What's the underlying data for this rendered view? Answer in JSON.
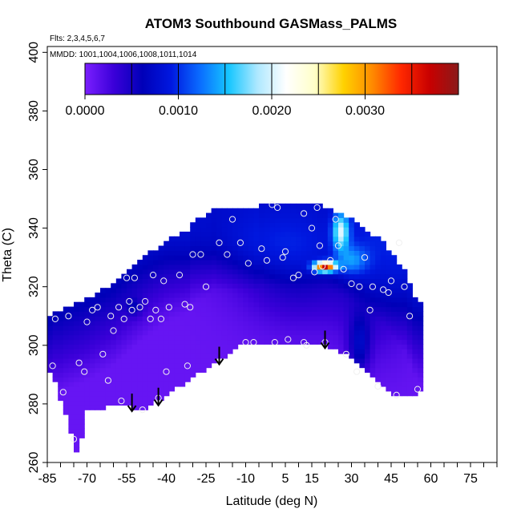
{
  "chart_data": {
    "type": "heatmap",
    "title": "ATOM3 Southbound GASMass_PALMS",
    "subtitle_flights": "Flts: 2,3,4,5,6,7",
    "subtitle_dates": "MMDD: 1001,1004,1006,1008,1011,1014",
    "xlabel": "Latitude (deg N)",
    "ylabel": "Theta (C)",
    "xlim": [
      -85,
      85
    ],
    "ylim": [
      260,
      402
    ],
    "x_ticks": [
      -85,
      -70,
      -55,
      -40,
      -25,
      -10,
      5,
      15,
      30,
      45,
      60,
      75
    ],
    "y_ticks": [
      260,
      280,
      300,
      320,
      340,
      360,
      380,
      400
    ],
    "colorbar": {
      "range": [
        0,
        0.004
      ],
      "tick_values": [
        0,
        0.001,
        0.002,
        0.003
      ],
      "tick_labels": [
        "0.0000",
        "0.0010",
        "0.0020",
        "0.0030"
      ],
      "colors": [
        "#7b1fff",
        "#3b00d9",
        "#0000b8",
        "#0018e0",
        "#0a6cff",
        "#16c6ff",
        "#aee8ff",
        "#ffffff",
        "#ffffc8",
        "#ffd200",
        "#ff8a00",
        "#ff2800",
        "#c80000",
        "#8a1a1a"
      ]
    },
    "annotations_arrows_lat": [
      -53,
      -43,
      -20,
      20
    ],
    "observation_points": [
      [
        -83,
        293
      ],
      [
        -82,
        309
      ],
      [
        -79,
        284
      ],
      [
        -77,
        310
      ],
      [
        -75,
        268
      ],
      [
        -73,
        294
      ],
      [
        -71,
        291
      ],
      [
        -70,
        308
      ],
      [
        -68,
        312
      ],
      [
        -66,
        313
      ],
      [
        -64,
        297
      ],
      [
        -62,
        288
      ],
      [
        -61,
        310
      ],
      [
        -60,
        305
      ],
      [
        -58,
        313
      ],
      [
        -57,
        281
      ],
      [
        -56,
        309
      ],
      [
        -55,
        323
      ],
      [
        -54,
        315
      ],
      [
        -53,
        312
      ],
      [
        -52,
        323
      ],
      [
        -50,
        313
      ],
      [
        -49,
        278
      ],
      [
        -48,
        315
      ],
      [
        -46,
        309
      ],
      [
        -45,
        324
      ],
      [
        -44,
        312
      ],
      [
        -43,
        282
      ],
      [
        -42,
        309
      ],
      [
        -41,
        322
      ],
      [
        -40,
        291
      ],
      [
        -39,
        313
      ],
      [
        -35,
        324
      ],
      [
        -33,
        314
      ],
      [
        -32,
        293
      ],
      [
        -31,
        313
      ],
      [
        -30,
        331
      ],
      [
        -27,
        331
      ],
      [
        -25,
        320
      ],
      [
        -20,
        335
      ],
      [
        -17,
        331
      ],
      [
        -15,
        343
      ],
      [
        -12,
        335
      ],
      [
        -10,
        301
      ],
      [
        -9,
        328
      ],
      [
        -7,
        301
      ],
      [
        -4,
        333
      ],
      [
        -2,
        329
      ],
      [
        0,
        348
      ],
      [
        1,
        301
      ],
      [
        2,
        347
      ],
      [
        4,
        330
      ],
      [
        5,
        332
      ],
      [
        6,
        302
      ],
      [
        8,
        323
      ],
      [
        10,
        324
      ],
      [
        12,
        345
      ],
      [
        12,
        301
      ],
      [
        13,
        300
      ],
      [
        15,
        340
      ],
      [
        16,
        325
      ],
      [
        17,
        347
      ],
      [
        18,
        334
      ],
      [
        19,
        327
      ],
      [
        20,
        301
      ],
      [
        22,
        329
      ],
      [
        24,
        343
      ],
      [
        25,
        334
      ],
      [
        27,
        326
      ],
      [
        28,
        297
      ],
      [
        30,
        321
      ],
      [
        32,
        291
      ],
      [
        33,
        320
      ],
      [
        35,
        330
      ],
      [
        37,
        312
      ],
      [
        38,
        320
      ],
      [
        40,
        286
      ],
      [
        42,
        319
      ],
      [
        44,
        318
      ],
      [
        45,
        322
      ],
      [
        47,
        283
      ],
      [
        48,
        335
      ],
      [
        50,
        320
      ],
      [
        52,
        310
      ],
      [
        55,
        285
      ]
    ]
  }
}
